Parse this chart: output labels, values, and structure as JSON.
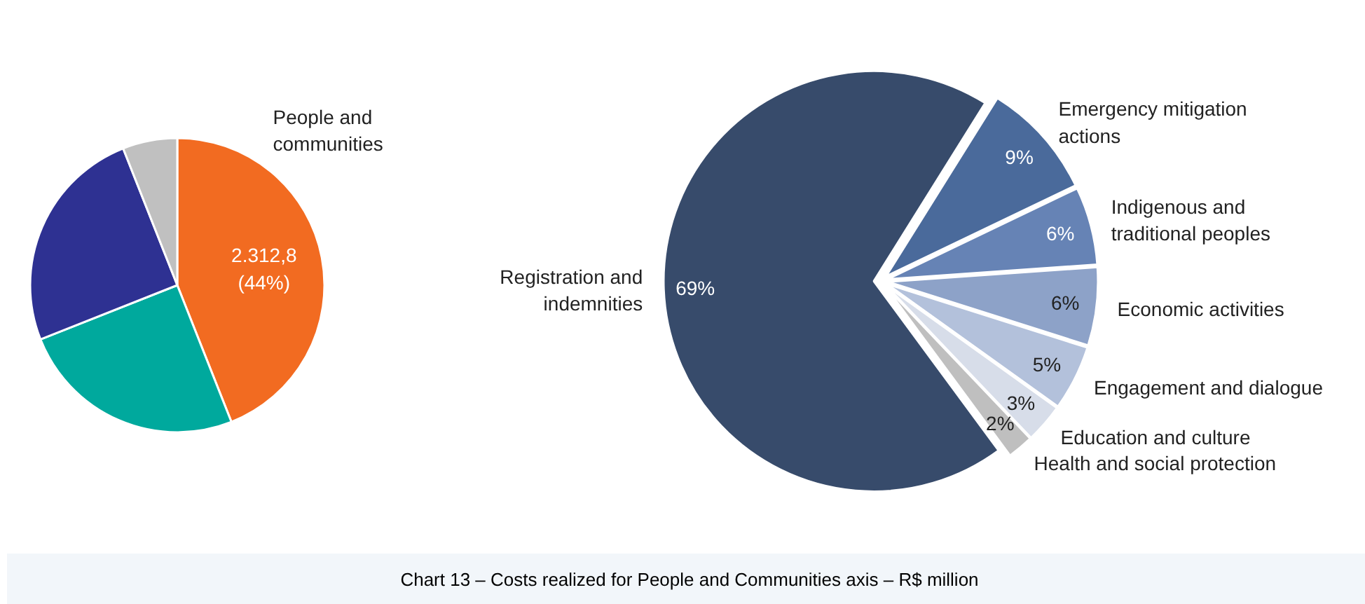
{
  "chart_data": [
    {
      "type": "pie",
      "categories": [
        "People and\ncommunities",
        null,
        null,
        null
      ],
      "values": [
        44,
        25,
        25,
        6
      ],
      "colors": [
        "#f26b21",
        "#00a99d",
        "#2e3192",
        "#c0c0c0"
      ],
      "value_labels": [
        "2.312,8\n(44%)",
        null,
        null,
        null
      ],
      "annotations": [
        "Chart 13 – Costs realized for People and Communities axis – R$ million"
      ]
    },
    {
      "type": "pie",
      "categories": [
        "Emergency mitigation\nactions",
        "Indigenous and\ntraditional peoples",
        "Economic activities",
        "Engagement and dialogue",
        "Education and culture",
        "Health and social protection",
        "Registration and\nindemnities"
      ],
      "values": [
        9,
        6,
        6,
        5,
        3,
        2,
        69
      ],
      "colors": [
        "#4a6a9b",
        "#6683b5",
        "#8da2c8",
        "#b3c1db",
        "#d7dde9",
        "#bfbfbf",
        "#374b6b"
      ],
      "value_labels": [
        "9%",
        "6%",
        "6%",
        "5%",
        "3%",
        "2%",
        "69%"
      ]
    }
  ]
}
